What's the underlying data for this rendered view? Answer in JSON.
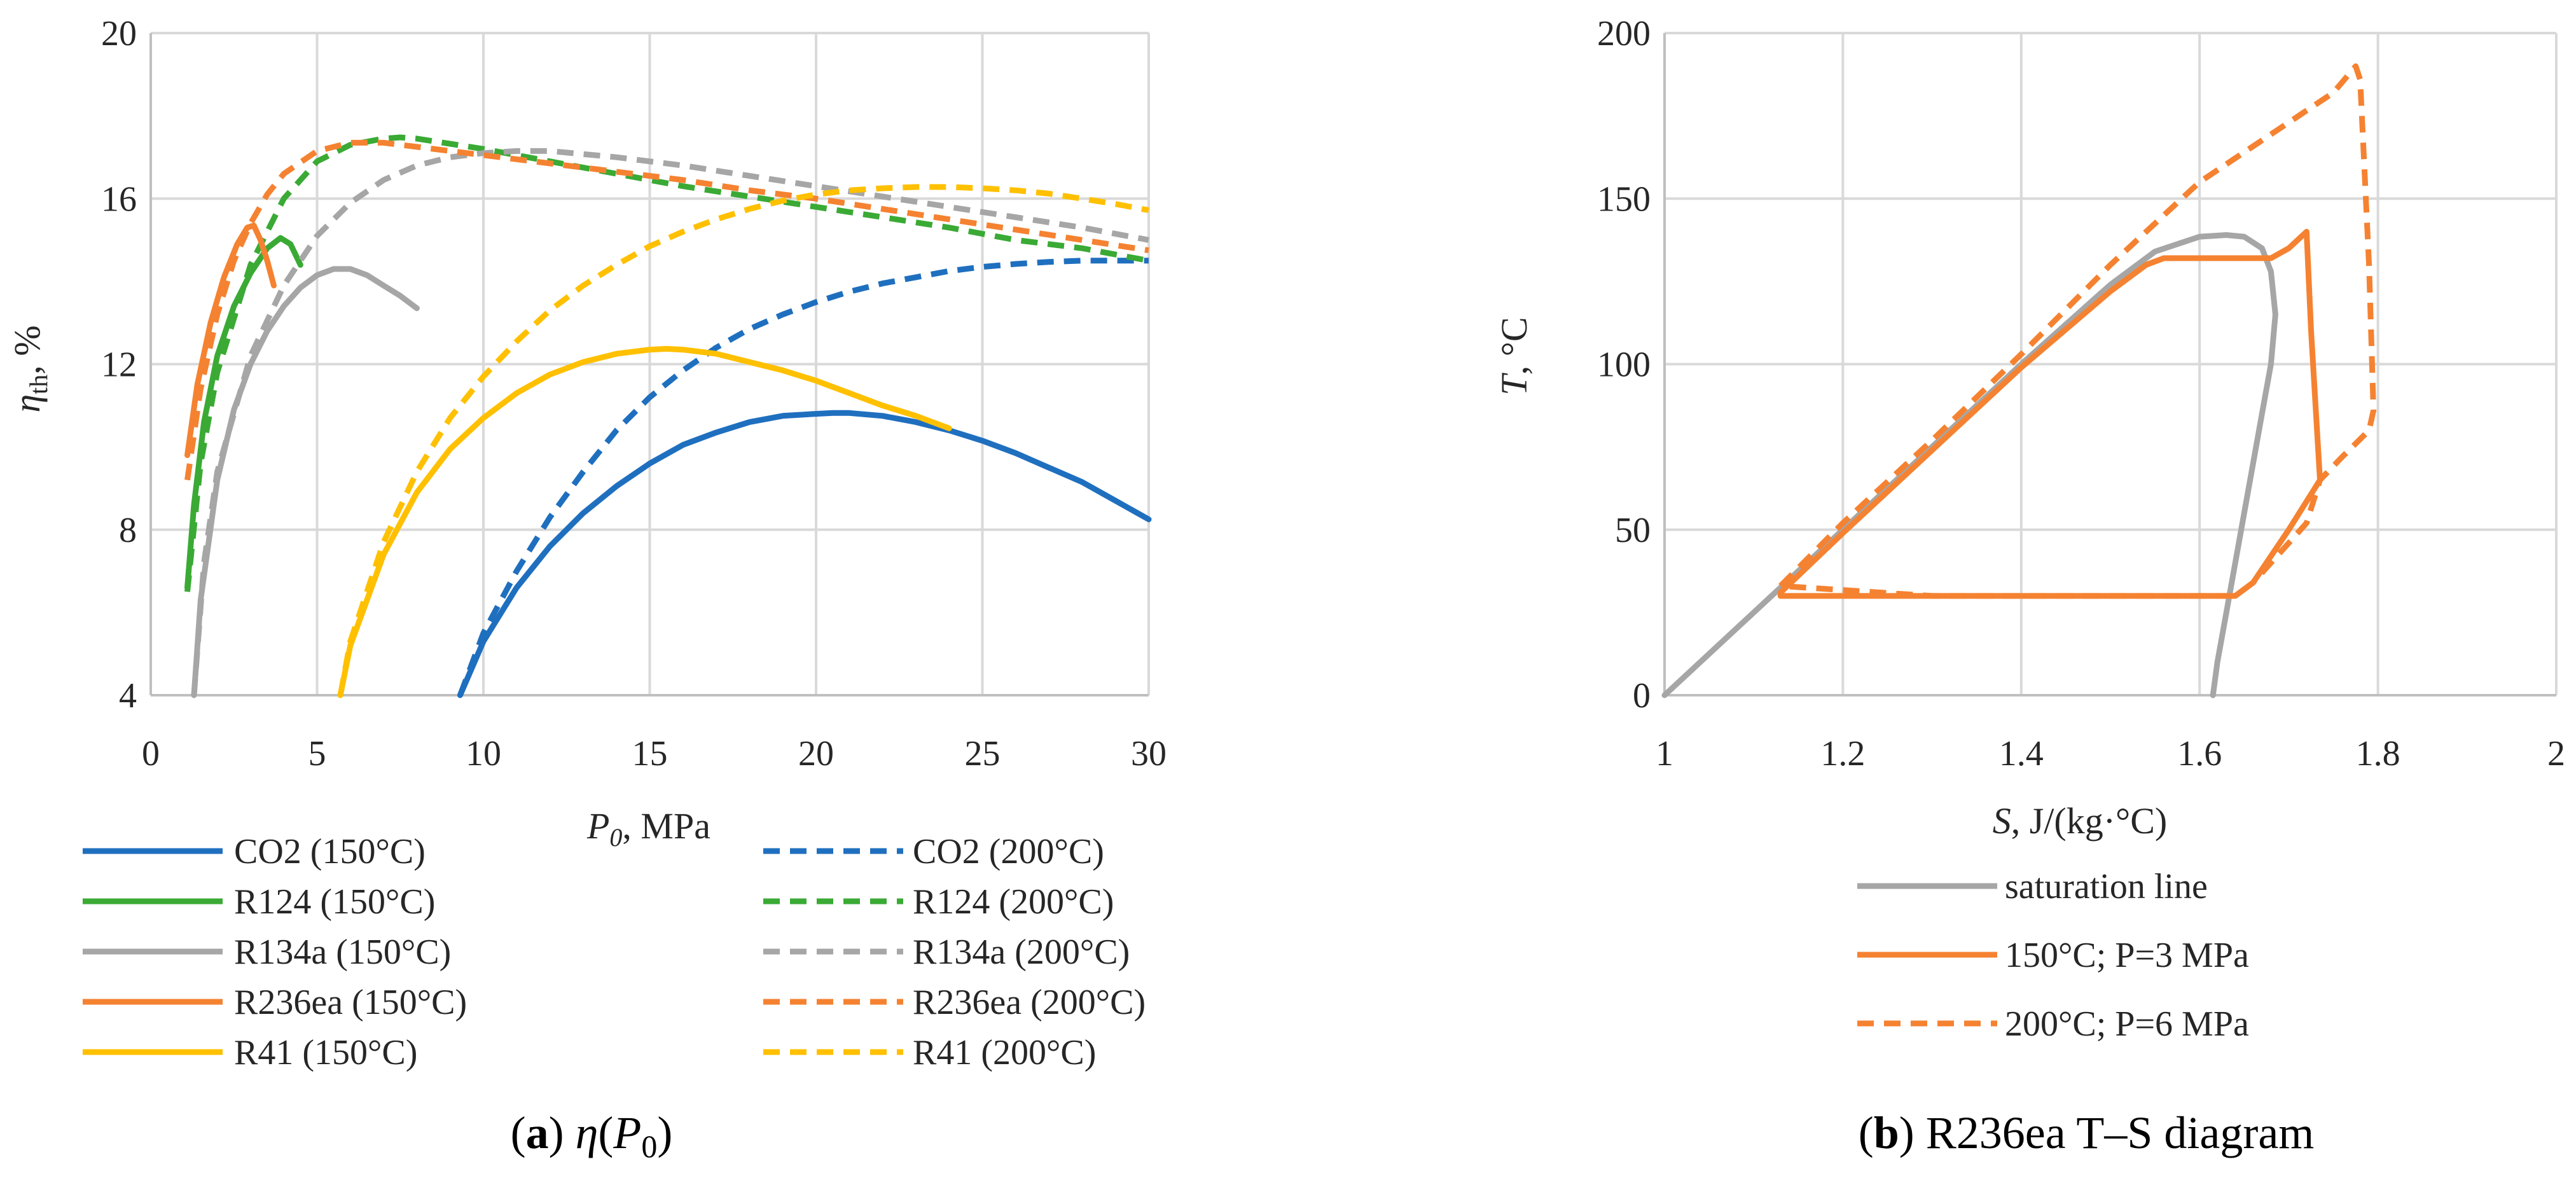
{
  "chart_data": [
    {
      "type": "line",
      "panel": "a",
      "xlabel": "P0, MPa",
      "xlabel_parts": {
        "symbol": "P",
        "sub": "0",
        "unit": ", MPa"
      },
      "ylabel": "ηth, %",
      "ylabel_parts": {
        "symbol": "η",
        "sub": "th",
        "unit": ", %"
      },
      "xlim": [
        0,
        30
      ],
      "ylim": [
        4,
        20
      ],
      "xticks": [
        "0",
        "5",
        "10",
        "15",
        "20",
        "25",
        "30"
      ],
      "yticks": [
        "4",
        "8",
        "12",
        "16",
        "20"
      ],
      "grid": true,
      "legend": "bottom",
      "caption": {
        "letter": "a",
        "text": "η(P0)",
        "eta": "η",
        "p": "P",
        "sub": "0"
      },
      "series": [
        {
          "name": "CO2 (150°C)",
          "color": "#1f6fbf",
          "dash": false,
          "x": [
            9.3,
            10,
            11,
            12,
            13,
            14,
            15,
            16,
            17,
            18,
            19,
            20,
            20.5,
            21,
            22,
            23,
            24,
            25,
            26,
            27,
            28,
            29,
            30
          ],
          "y": [
            4.0,
            5.3,
            6.6,
            7.6,
            8.4,
            9.05,
            9.6,
            10.05,
            10.35,
            10.6,
            10.75,
            10.8,
            10.82,
            10.82,
            10.75,
            10.6,
            10.4,
            10.15,
            9.85,
            9.5,
            9.15,
            8.7,
            8.25
          ]
        },
        {
          "name": "CO2 (200°C)",
          "color": "#1f6fbf",
          "dash": true,
          "x": [
            9.3,
            10,
            11,
            12,
            13,
            14,
            15,
            16,
            17,
            18,
            19,
            20,
            21,
            22,
            23,
            24,
            25,
            26,
            27,
            28,
            29,
            30
          ],
          "y": [
            4.0,
            5.5,
            7.0,
            8.3,
            9.4,
            10.4,
            11.2,
            11.85,
            12.4,
            12.85,
            13.2,
            13.5,
            13.75,
            13.95,
            14.1,
            14.25,
            14.35,
            14.42,
            14.47,
            14.5,
            14.5,
            14.5
          ]
        },
        {
          "name": "R124 (150°C)",
          "color": "#3aaa35",
          "dash": false,
          "x": [
            1.1,
            1.3,
            1.6,
            2.0,
            2.5,
            3.0,
            3.5,
            3.9,
            4.2,
            4.5
          ],
          "y": [
            6.6,
            8.6,
            10.6,
            12.2,
            13.4,
            14.2,
            14.8,
            15.05,
            14.9,
            14.4
          ]
        },
        {
          "name": "R124 (200°C)",
          "color": "#3aaa35",
          "dash": true,
          "x": [
            1.1,
            1.5,
            2.0,
            3.0,
            4.0,
            5.0,
            6.0,
            7.0,
            7.5,
            8,
            10,
            12,
            14,
            16,
            18,
            20,
            22,
            24,
            26,
            28,
            30
          ],
          "y": [
            6.5,
            9.6,
            11.8,
            14.4,
            16.0,
            16.9,
            17.3,
            17.45,
            17.48,
            17.45,
            17.2,
            16.9,
            16.6,
            16.3,
            16.05,
            15.8,
            15.55,
            15.3,
            15.0,
            14.8,
            14.5
          ]
        },
        {
          "name": "R134a (150°C)",
          "color": "#a6a6a6",
          "dash": false,
          "x": [
            1.3,
            1.5,
            2.0,
            2.5,
            3.0,
            3.5,
            4.0,
            4.5,
            5.0,
            5.5,
            6.0,
            6.5,
            7.0,
            7.5,
            8.0
          ],
          "y": [
            4.0,
            6.3,
            9.2,
            10.9,
            12.0,
            12.8,
            13.4,
            13.85,
            14.15,
            14.3,
            14.3,
            14.15,
            13.9,
            13.65,
            13.35
          ]
        },
        {
          "name": "R134a (200°C)",
          "color": "#a6a6a6",
          "dash": true,
          "x": [
            1.3,
            1.6,
            2.0,
            3.0,
            4.0,
            5.0,
            6.0,
            7.0,
            8.0,
            9.0,
            10,
            11,
            12,
            14,
            16,
            18,
            20,
            22,
            24,
            26,
            28,
            30
          ],
          "y": [
            4.0,
            7.2,
            9.4,
            12.2,
            13.9,
            15.1,
            15.9,
            16.45,
            16.8,
            17.0,
            17.1,
            17.15,
            17.15,
            17.0,
            16.8,
            16.55,
            16.3,
            16.05,
            15.8,
            15.55,
            15.3,
            15.0
          ]
        },
        {
          "name": "R236ea (150°C)",
          "color": "#f58231",
          "dash": false,
          "x": [
            1.1,
            1.4,
            1.8,
            2.2,
            2.6,
            2.9,
            3.1,
            3.3,
            3.5,
            3.7
          ],
          "y": [
            9.8,
            11.5,
            13.0,
            14.1,
            14.9,
            15.3,
            15.35,
            15.0,
            14.5,
            13.9
          ]
        },
        {
          "name": "R236ea (200°C)",
          "color": "#f58231",
          "dash": true,
          "x": [
            1.1,
            1.5,
            2.0,
            2.5,
            3.0,
            3.5,
            4.0,
            5.0,
            6.0,
            7.0,
            8.0,
            10,
            12,
            14,
            16,
            18,
            20,
            22,
            24,
            26,
            28,
            30
          ],
          "y": [
            9.2,
            11.4,
            13.2,
            14.5,
            15.4,
            16.1,
            16.6,
            17.15,
            17.35,
            17.35,
            17.25,
            17.05,
            16.85,
            16.65,
            16.45,
            16.2,
            16.0,
            15.75,
            15.5,
            15.25,
            15.0,
            14.75
          ]
        },
        {
          "name": "R41 (150°C)",
          "color": "#ffc000",
          "dash": false,
          "x": [
            5.7,
            6.0,
            7.0,
            8.0,
            9.0,
            10,
            11,
            12,
            13,
            14,
            15,
            15.5,
            16,
            17,
            18,
            19,
            20,
            21,
            22,
            23,
            24
          ],
          "y": [
            4.0,
            5.2,
            7.4,
            8.9,
            9.95,
            10.7,
            11.3,
            11.75,
            12.05,
            12.25,
            12.35,
            12.37,
            12.35,
            12.25,
            12.05,
            11.85,
            11.6,
            11.3,
            11.0,
            10.75,
            10.45
          ]
        },
        {
          "name": "R41 (200°C)",
          "color": "#ffc000",
          "dash": true,
          "x": [
            5.7,
            6.0,
            7.0,
            8.0,
            9.0,
            10,
            11,
            12,
            13,
            14,
            15,
            16,
            17,
            18,
            19,
            20,
            21,
            22,
            23,
            24,
            25,
            26,
            27,
            28,
            29,
            30
          ],
          "y": [
            4.0,
            5.3,
            7.7,
            9.4,
            10.7,
            11.7,
            12.55,
            13.3,
            13.9,
            14.4,
            14.85,
            15.2,
            15.5,
            15.75,
            15.95,
            16.1,
            16.2,
            16.25,
            16.28,
            16.28,
            16.25,
            16.2,
            16.12,
            16.0,
            15.87,
            15.72
          ]
        }
      ]
    },
    {
      "type": "line",
      "panel": "b",
      "xlabel": "S, J/(kg·°C)",
      "xlabel_parts": {
        "symbol": "S",
        "unit": ", J/(kg·°C)"
      },
      "ylabel": "T, °C",
      "ylabel_parts": {
        "symbol": "T",
        "unit": ", °C"
      },
      "xlim": [
        1,
        2
      ],
      "ylim": [
        0,
        200
      ],
      "xticks": [
        "1",
        "1.2",
        "1.4",
        "1.6",
        "1.8",
        "2"
      ],
      "yticks": [
        "0",
        "50",
        "100",
        "150",
        "200"
      ],
      "grid": true,
      "legend": "bottom",
      "caption": {
        "letter": "b",
        "text": "R236ea T–S diagram"
      },
      "series": [
        {
          "name": "saturation line",
          "color": "#a6a6a6",
          "dash": false,
          "x": [
            1.0,
            1.1,
            1.2,
            1.3,
            1.4,
            1.5,
            1.55,
            1.6,
            1.63,
            1.65,
            1.67,
            1.68,
            1.685,
            1.68,
            1.67,
            1.66,
            1.65,
            1.64,
            1.63,
            1.62,
            1.615
          ],
          "y": [
            0,
            25,
            50,
            75,
            100,
            124,
            134,
            138.5,
            139,
            138.5,
            135,
            128,
            115,
            100,
            85,
            70,
            55,
            40,
            25,
            10,
            0
          ]
        },
        {
          "name": "150°C; P=3 MPa",
          "color": "#f58231",
          "dash": false,
          "x": [
            1.13,
            1.2,
            1.3,
            1.4,
            1.5,
            1.54,
            1.56,
            1.6,
            1.65,
            1.68,
            1.7,
            1.72,
            1.725,
            1.735,
            1.7,
            1.66,
            1.64,
            1.5,
            1.3,
            1.13,
            1.13
          ],
          "y": [
            31,
            49,
            74,
            99,
            122,
            130,
            132,
            132,
            132,
            132,
            135,
            140,
            110,
            65,
            50,
            34,
            30,
            30,
            30,
            30,
            31
          ]
        },
        {
          "name": "200°C; P=6 MPa",
          "color": "#f58231",
          "dash": true,
          "x": [
            1.13,
            1.2,
            1.3,
            1.4,
            1.5,
            1.6,
            1.7,
            1.75,
            1.775,
            1.78,
            1.79,
            1.795,
            1.79,
            1.76,
            1.735,
            1.72,
            1.7,
            1.66,
            1.64,
            1.5,
            1.3,
            1.13
          ],
          "y": [
            33,
            52,
            77,
            103,
            130,
            155,
            173,
            182,
            190,
            186,
            130,
            86,
            80,
            72,
            65,
            52,
            46,
            34,
            30,
            30,
            30,
            33
          ]
        }
      ]
    }
  ]
}
